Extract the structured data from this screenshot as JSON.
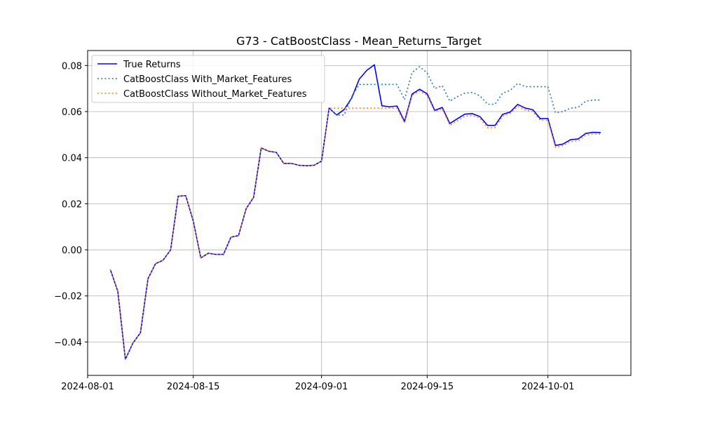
{
  "chart_data": {
    "type": "line",
    "title": "G73 - CatBoostClass - Mean_Returns_Target",
    "xlabel": "",
    "ylabel": "",
    "x_axis_type": "date",
    "xlim": [
      "2024-08-01",
      "2024-10-12"
    ],
    "ylim": [
      -0.0545,
      0.0865
    ],
    "x_ticks": [
      "2024-08-01",
      "2024-08-15",
      "2024-09-01",
      "2024-09-15",
      "2024-10-01"
    ],
    "y_ticks": [
      -0.04,
      -0.02,
      0.0,
      0.02,
      0.04,
      0.06,
      0.08
    ],
    "y_tick_labels": [
      "−0.04",
      "−0.02",
      "0.00",
      "0.02",
      "0.04",
      "0.06",
      "0.08"
    ],
    "grid": true,
    "legend_position": "top-left",
    "x": [
      "2024-08-04",
      "2024-08-05",
      "2024-08-06",
      "2024-08-07",
      "2024-08-08",
      "2024-08-09",
      "2024-08-10",
      "2024-08-11",
      "2024-08-12",
      "2024-08-13",
      "2024-08-14",
      "2024-08-15",
      "2024-08-16",
      "2024-08-17",
      "2024-08-18",
      "2024-08-19",
      "2024-08-20",
      "2024-08-21",
      "2024-08-22",
      "2024-08-23",
      "2024-08-24",
      "2024-08-25",
      "2024-08-26",
      "2024-08-27",
      "2024-08-28",
      "2024-08-29",
      "2024-08-30",
      "2024-08-31",
      "2024-09-01",
      "2024-09-02",
      "2024-09-03",
      "2024-09-04",
      "2024-09-05",
      "2024-09-06",
      "2024-09-07",
      "2024-09-08",
      "2024-09-09",
      "2024-09-10",
      "2024-09-11",
      "2024-09-12",
      "2024-09-13",
      "2024-09-14",
      "2024-09-15",
      "2024-09-16",
      "2024-09-17",
      "2024-09-18",
      "2024-09-19",
      "2024-09-20",
      "2024-09-21",
      "2024-09-22",
      "2024-09-23",
      "2024-09-24",
      "2024-09-25",
      "2024-09-26",
      "2024-09-27",
      "2024-09-28",
      "2024-09-29",
      "2024-09-30",
      "2024-10-01",
      "2024-10-02",
      "2024-10-03",
      "2024-10-04",
      "2024-10-05",
      "2024-10-06",
      "2024-10-07",
      "2024-10-08"
    ],
    "series": [
      {
        "name": "True Returns",
        "color": "#0000ff",
        "style": "solid",
        "values": [
          -0.0085,
          -0.018,
          -0.0475,
          -0.0405,
          -0.036,
          -0.0125,
          -0.006,
          -0.0045,
          0.0,
          0.0233,
          0.0235,
          0.0125,
          -0.0035,
          -0.0015,
          -0.002,
          -0.002,
          0.0055,
          0.0062,
          0.0178,
          0.0228,
          0.0442,
          0.0428,
          0.0423,
          0.0375,
          0.0375,
          0.0367,
          0.0365,
          0.0367,
          0.0385,
          0.0615,
          0.0585,
          0.0609,
          0.0659,
          0.0741,
          0.0779,
          0.0803,
          0.0625,
          0.0621,
          0.0624,
          0.0557,
          0.0676,
          0.0697,
          0.0677,
          0.0605,
          0.0618,
          0.0548,
          0.0569,
          0.0589,
          0.0591,
          0.0578,
          0.054,
          0.054,
          0.0588,
          0.0598,
          0.0631,
          0.0615,
          0.0608,
          0.0569,
          0.057,
          0.0453,
          0.0459,
          0.0478,
          0.0481,
          0.0505,
          0.051,
          0.0509
        ]
      },
      {
        "name": "CatBoostClass With_Market_Features",
        "color": "#1f77b4",
        "style": "dotted",
        "values": [
          -0.0085,
          -0.018,
          -0.0475,
          -0.0405,
          -0.036,
          -0.0125,
          -0.006,
          -0.0045,
          0.0,
          0.0233,
          0.0235,
          0.0125,
          -0.0035,
          -0.0015,
          -0.002,
          -0.002,
          0.0055,
          0.0062,
          0.0178,
          0.0228,
          0.0442,
          0.0428,
          0.0423,
          0.0375,
          0.0375,
          0.0367,
          0.0365,
          0.0367,
          0.0385,
          0.0615,
          0.0585,
          0.0585,
          0.0665,
          0.0718,
          0.0718,
          0.0718,
          0.0718,
          0.0718,
          0.0718,
          0.0652,
          0.077,
          0.0795,
          0.0768,
          0.07,
          0.0712,
          0.0645,
          0.0665,
          0.068,
          0.0683,
          0.0668,
          0.0632,
          0.0632,
          0.068,
          0.0692,
          0.0722,
          0.0708,
          0.0708,
          0.0708,
          0.0708,
          0.0595,
          0.06,
          0.0615,
          0.0618,
          0.0645,
          0.065,
          0.065
        ]
      },
      {
        "name": "CatBoostClass Without_Market_Features",
        "color": "#ff7f0e",
        "style": "dotted",
        "values": [
          -0.0085,
          -0.018,
          -0.0475,
          -0.0405,
          -0.036,
          -0.0125,
          -0.006,
          -0.0045,
          0.0,
          0.0233,
          0.0235,
          0.0125,
          -0.0035,
          -0.0015,
          -0.002,
          -0.002,
          0.0055,
          0.0062,
          0.0178,
          0.0228,
          0.0442,
          0.0428,
          0.0423,
          0.0375,
          0.0375,
          0.0367,
          0.0365,
          0.0367,
          0.0385,
          0.0615,
          0.0615,
          0.0615,
          0.0615,
          0.0615,
          0.0615,
          0.0615,
          0.0615,
          0.0615,
          0.0615,
          0.055,
          0.067,
          0.069,
          0.067,
          0.06,
          0.0612,
          0.054,
          0.056,
          0.058,
          0.0583,
          0.057,
          0.053,
          0.053,
          0.058,
          0.0592,
          0.0622,
          0.0607,
          0.06,
          0.0562,
          0.0562,
          0.0445,
          0.0452,
          0.047,
          0.0473,
          0.0497,
          0.0503,
          0.0502
        ]
      }
    ]
  }
}
